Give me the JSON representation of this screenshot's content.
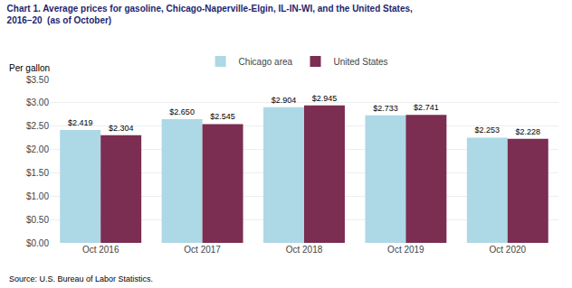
{
  "chart_data": {
    "type": "bar",
    "title": "Chart 1. Average prices for gasoline, Chicago-Naperville-Elgin, IL-IN-WI, and the United States,",
    "subtitle": "2016–20  (as of October)",
    "ylabel": "Per gallon",
    "annotations": [
      "Source: U.S. Bureau of Labor Statistics."
    ],
    "categories": [
      "Oct 2016",
      "Oct 2017",
      "Oct 2018",
      "Oct 2019",
      "Oct 2020"
    ],
    "series": [
      {
        "name": "Chicago area",
        "color": "#ADD8E6",
        "values": [
          2.419,
          2.65,
          2.904,
          2.733,
          2.253
        ],
        "value_labels": [
          "$2.419",
          "$2.650",
          "$2.904",
          "$2.733",
          "$2.253"
        ]
      },
      {
        "name": "United States",
        "color": "#7B2D52",
        "values": [
          2.304,
          2.545,
          2.945,
          2.741,
          2.228
        ],
        "value_labels": [
          "$2.304",
          "$2.545",
          "$2.945",
          "$2.741",
          "$2.228"
        ]
      }
    ],
    "ylim": [
      0,
      3.5
    ],
    "yticks": [
      {
        "value": 0.0,
        "label": "$0.00"
      },
      {
        "value": 0.5,
        "label": "$0.50"
      },
      {
        "value": 1.0,
        "label": "$1.00"
      },
      {
        "value": 1.5,
        "label": "$1.50"
      },
      {
        "value": 2.0,
        "label": "$2.00"
      },
      {
        "value": 2.5,
        "label": "$2.50"
      },
      {
        "value": 3.0,
        "label": "$3.00"
      },
      {
        "value": 3.5,
        "label": "$3.50"
      }
    ],
    "grid": true,
    "legend": "top",
    "data_labels": true
  }
}
